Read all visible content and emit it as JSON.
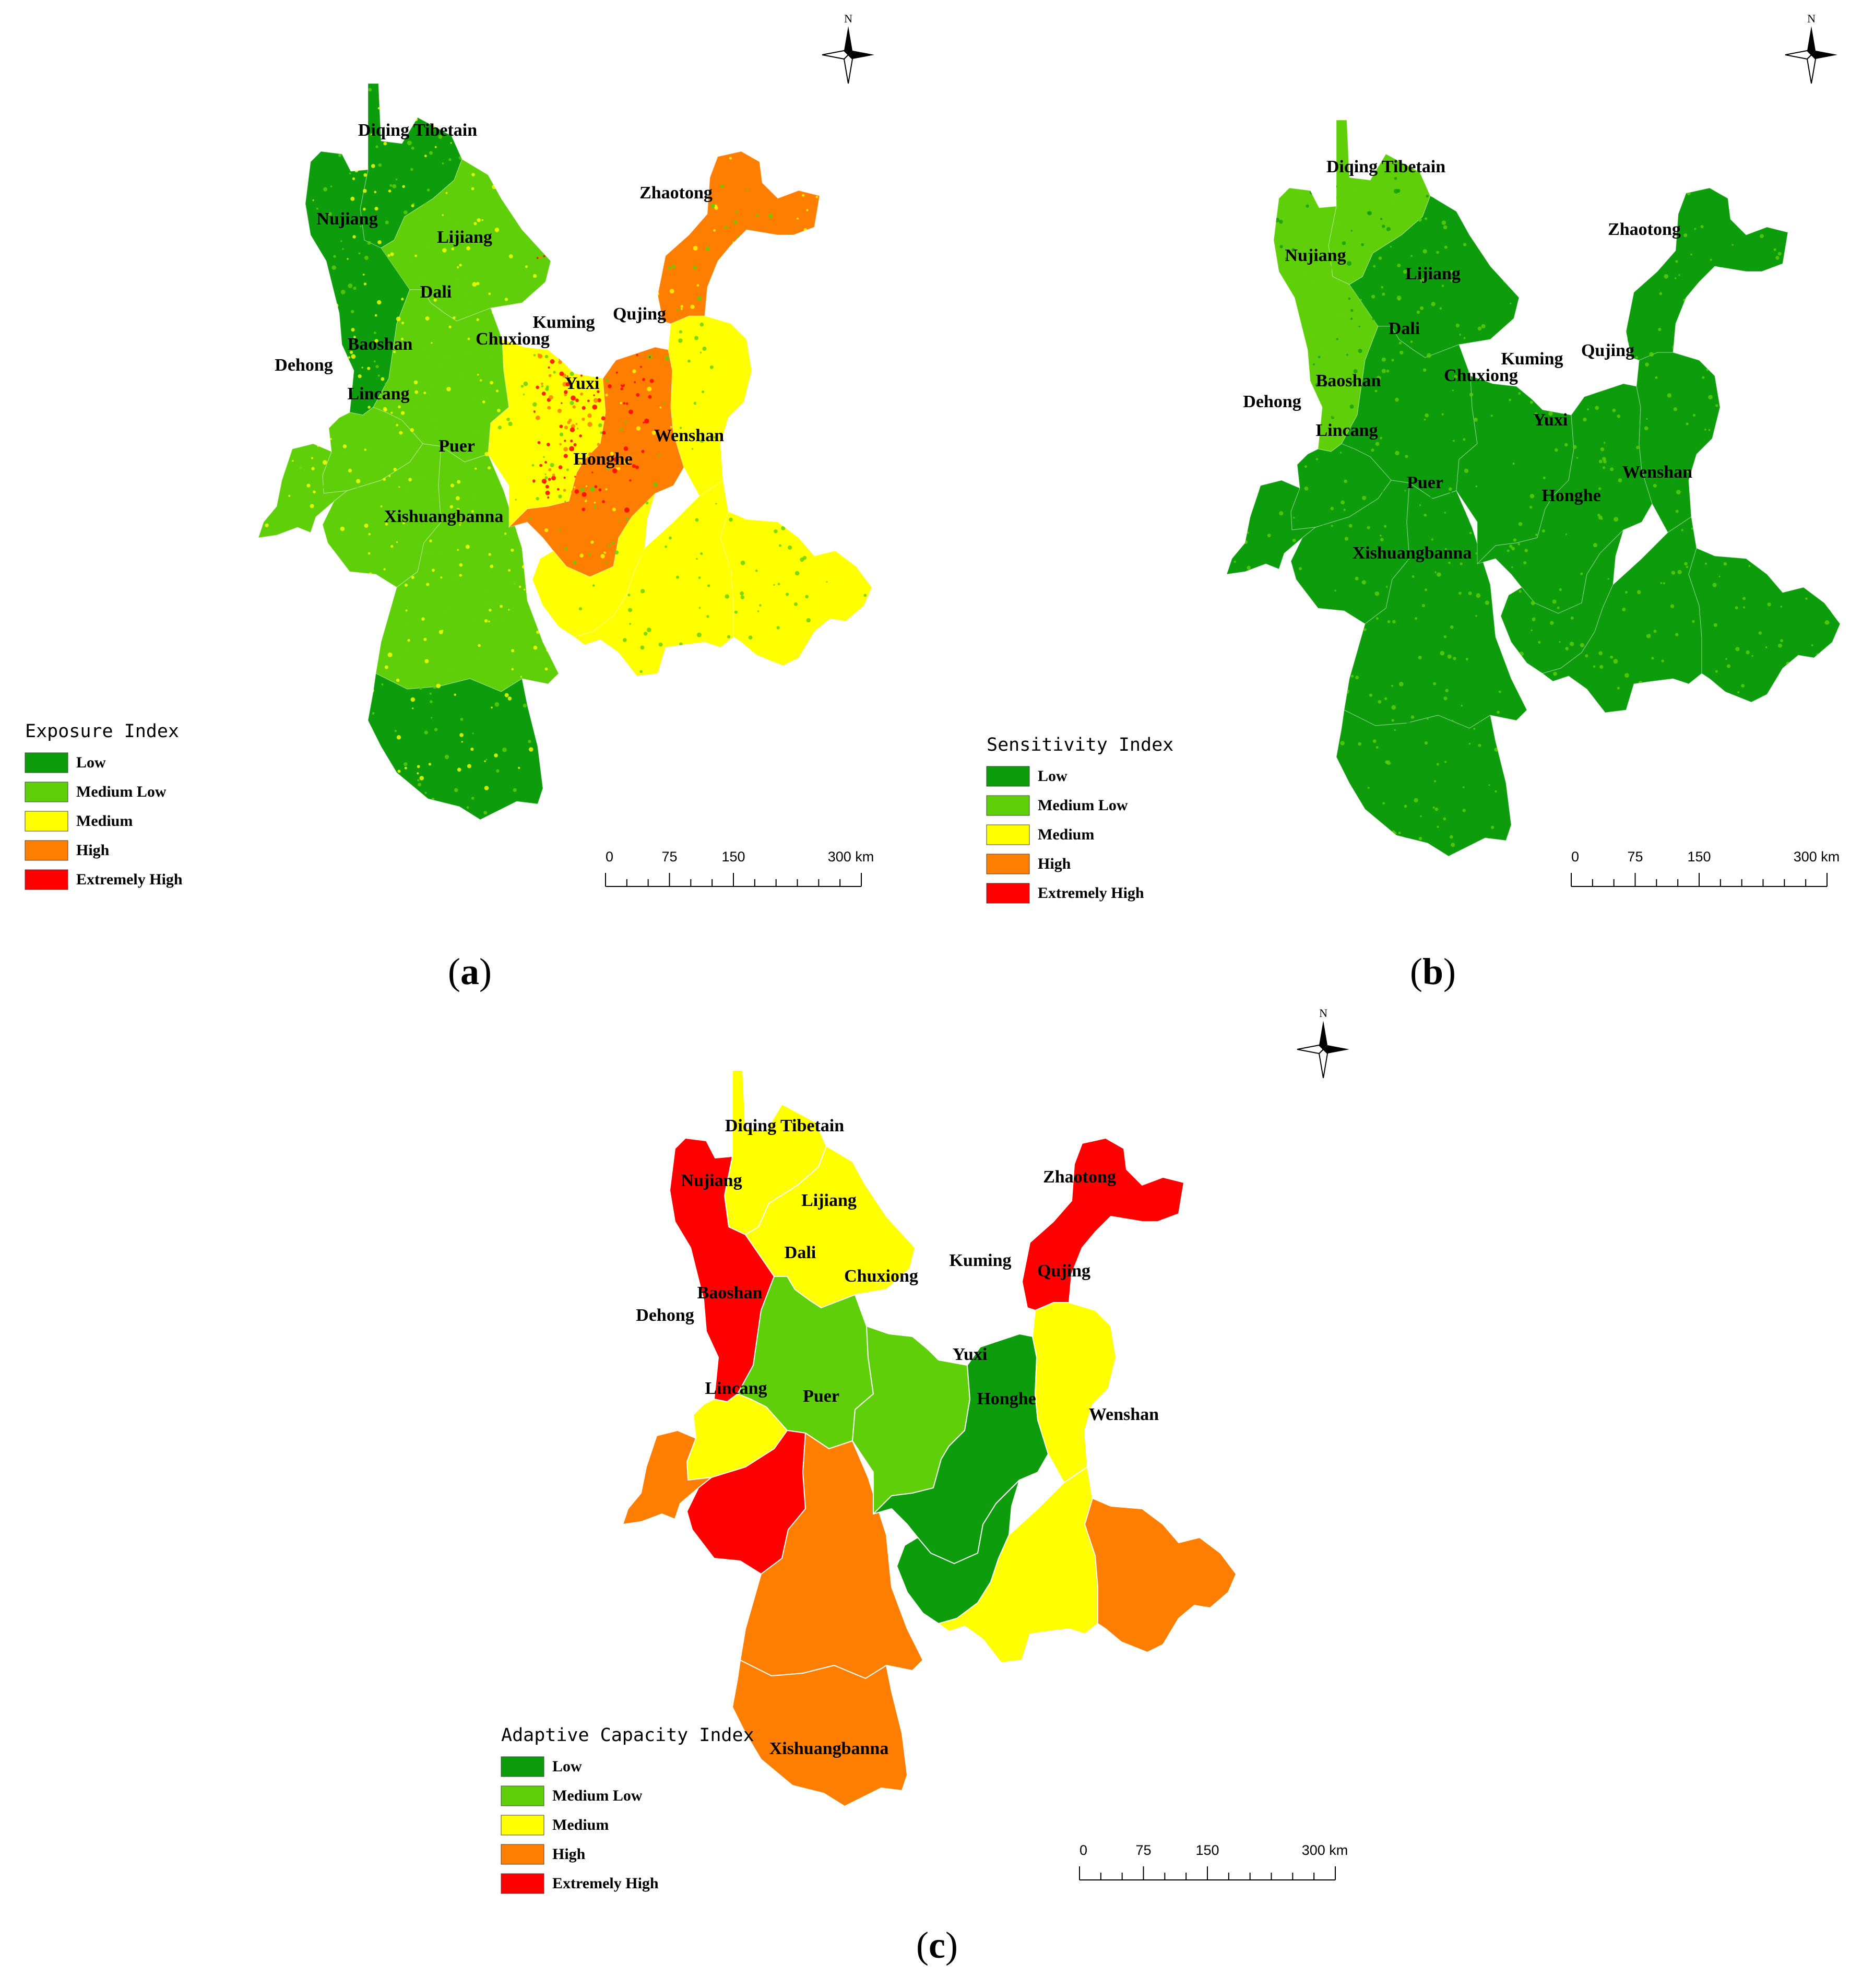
{
  "colors": {
    "low": "#0c9c0c",
    "medium_low": "#5fcf0a",
    "medium": "#ffff00",
    "high": "#fd7e00",
    "extremely_high": "#fe0000"
  },
  "legend_items": [
    "Low",
    "Medium Low",
    "Medium",
    "High",
    "Extremely High"
  ],
  "scale_bar": {
    "ticks": [
      "0",
      "75",
      "150",
      "300 km"
    ]
  },
  "north_label": "N",
  "panels": [
    {
      "id": "a",
      "caption": "a",
      "legend_title": "Exposure Index",
      "dominant_class": "medium_low",
      "regions": [
        {
          "name": "Diqing Tibetain",
          "class": "low"
        },
        {
          "name": "Nujiang",
          "class": "low"
        },
        {
          "name": "Lijiang",
          "class": "medium_low"
        },
        {
          "name": "Dali",
          "class": "medium_low"
        },
        {
          "name": "Baoshan",
          "class": "medium_low"
        },
        {
          "name": "Dehong",
          "class": "medium_low"
        },
        {
          "name": "Lincang",
          "class": "medium_low"
        },
        {
          "name": "Puer",
          "class": "medium_low"
        },
        {
          "name": "Xishuangbanna",
          "class": "low"
        },
        {
          "name": "Chuxiong",
          "class": "medium"
        },
        {
          "name": "Kuming",
          "class": "high"
        },
        {
          "name": "Qujing",
          "class": "medium"
        },
        {
          "name": "Zhaotong",
          "class": "high"
        },
        {
          "name": "Yuxi",
          "class": "medium"
        },
        {
          "name": "Honghe",
          "class": "medium"
        },
        {
          "name": "Wenshan",
          "class": "medium"
        }
      ]
    },
    {
      "id": "b",
      "caption": "b",
      "legend_title": "Sensitivity Index",
      "dominant_class": "low",
      "regions": [
        {
          "name": "Diqing Tibetain",
          "class": "medium_low"
        },
        {
          "name": "Nujiang",
          "class": "medium_low"
        },
        {
          "name": "Lijiang",
          "class": "low"
        },
        {
          "name": "Dali",
          "class": "low"
        },
        {
          "name": "Baoshan",
          "class": "low"
        },
        {
          "name": "Dehong",
          "class": "low"
        },
        {
          "name": "Lincang",
          "class": "low"
        },
        {
          "name": "Puer",
          "class": "low"
        },
        {
          "name": "Xishuangbanna",
          "class": "low"
        },
        {
          "name": "Chuxiong",
          "class": "low"
        },
        {
          "name": "Kuming",
          "class": "low"
        },
        {
          "name": "Qujing",
          "class": "low"
        },
        {
          "name": "Zhaotong",
          "class": "low"
        },
        {
          "name": "Yuxi",
          "class": "low"
        },
        {
          "name": "Honghe",
          "class": "low"
        },
        {
          "name": "Wenshan",
          "class": "low"
        }
      ]
    },
    {
      "id": "c",
      "caption": "c",
      "legend_title": "Adaptive Capacity Index",
      "dominant_class": "medium",
      "regions": [
        {
          "name": "Diqing Tibetain",
          "class": "medium"
        },
        {
          "name": "Nujiang",
          "class": "extremely_high"
        },
        {
          "name": "Lijiang",
          "class": "medium"
        },
        {
          "name": "Dali",
          "class": "medium_low"
        },
        {
          "name": "Baoshan",
          "class": "medium"
        },
        {
          "name": "Dehong",
          "class": "high"
        },
        {
          "name": "Lincang",
          "class": "extremely_high"
        },
        {
          "name": "Puer",
          "class": "high"
        },
        {
          "name": "Xishuangbanna",
          "class": "high"
        },
        {
          "name": "Chuxiong",
          "class": "medium_low"
        },
        {
          "name": "Kuming",
          "class": "low"
        },
        {
          "name": "Qujing",
          "class": "medium"
        },
        {
          "name": "Zhaotong",
          "class": "extremely_high"
        },
        {
          "name": "Yuxi",
          "class": "low"
        },
        {
          "name": "Honghe",
          "class": "medium"
        },
        {
          "name": "Wenshan",
          "class": "high"
        }
      ]
    }
  ]
}
